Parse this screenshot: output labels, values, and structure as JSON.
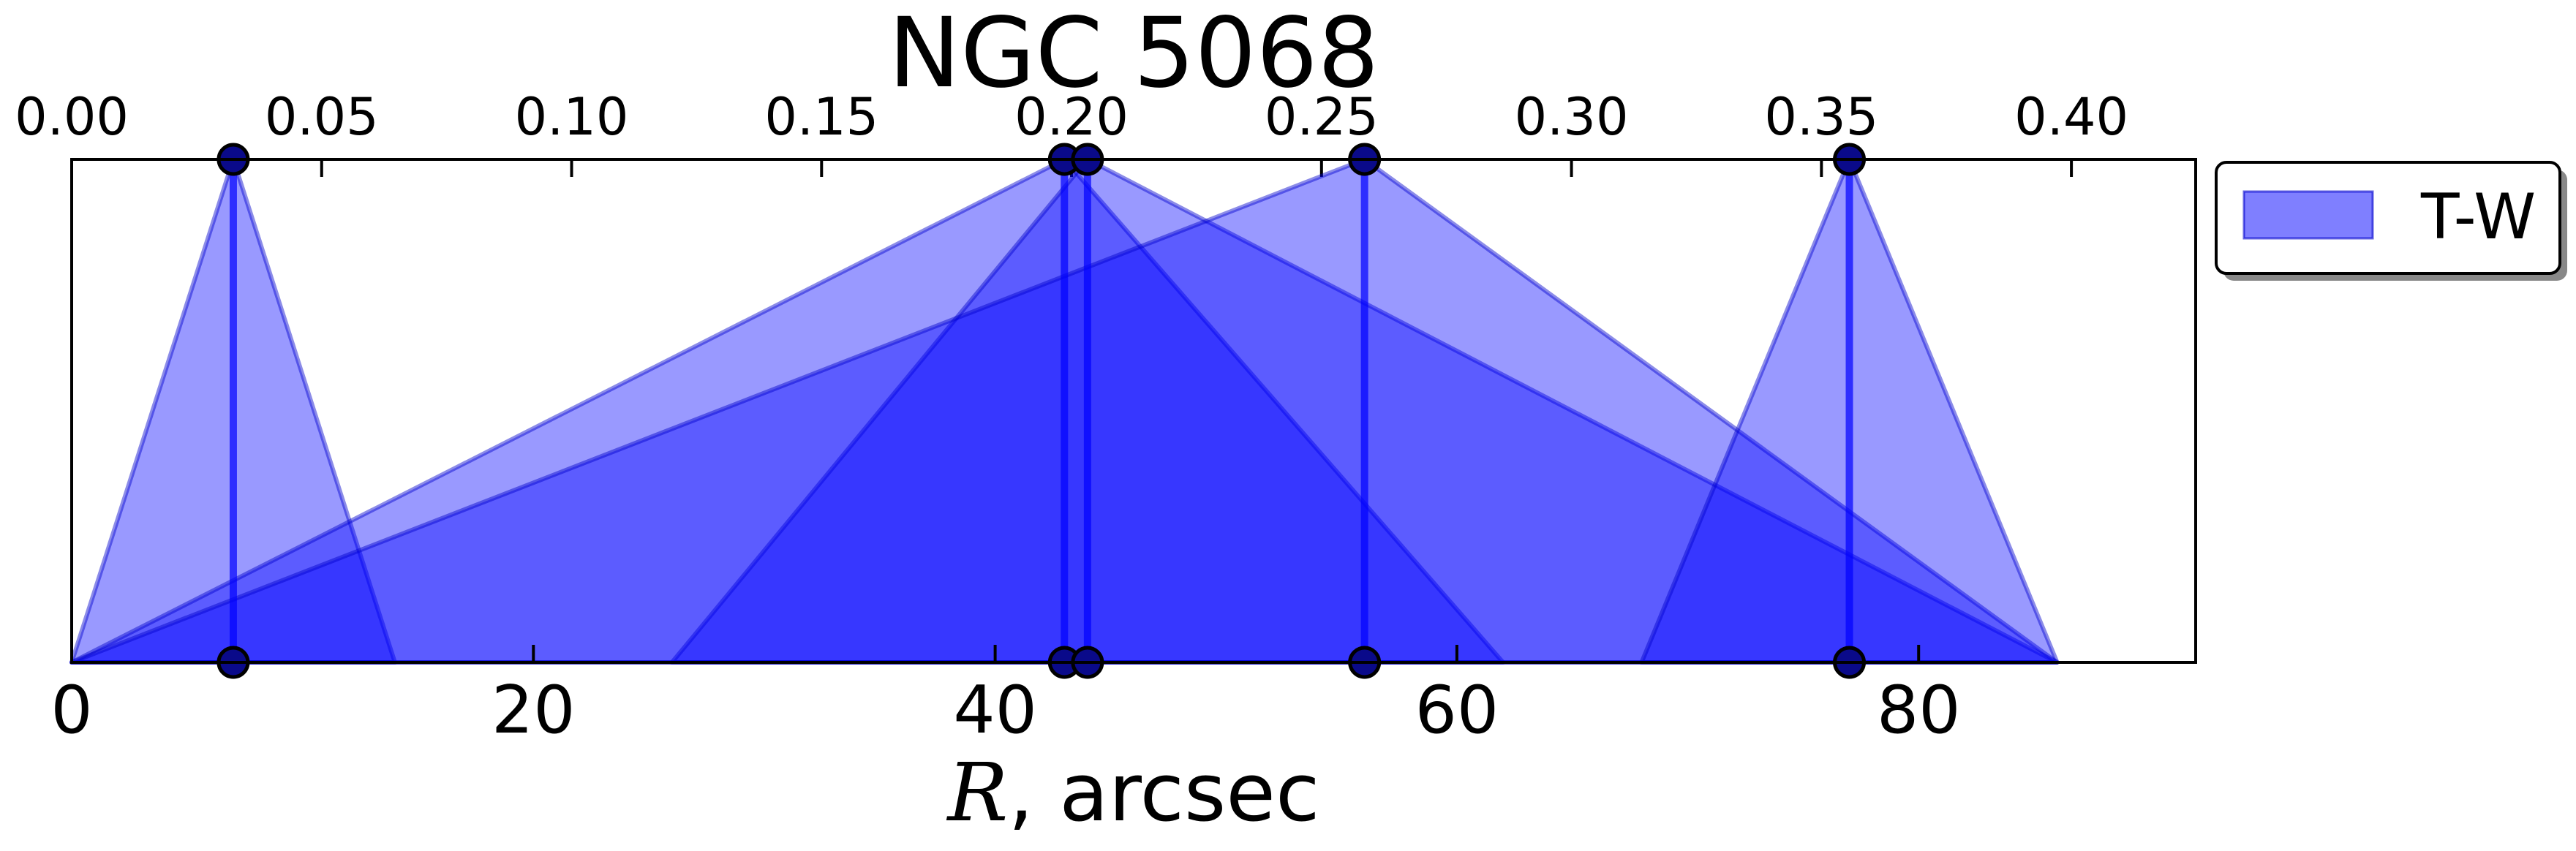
{
  "chart_data": {
    "type": "area",
    "title": "NGC 5068",
    "xlabel_symbol": "R",
    "xlabel_rest": ", arcsec",
    "xlim": [
      0,
      92
    ],
    "xticks": [
      0,
      20,
      40,
      60,
      80
    ],
    "xtick_labels": [
      "0",
      "20",
      "40",
      "60",
      "80"
    ],
    "top_axis": {
      "scale": 0.004618,
      "ticks": [
        0.0,
        0.05,
        0.1,
        0.15,
        0.2,
        0.25,
        0.3,
        0.35,
        0.4
      ],
      "tick_labels": [
        "0.00",
        "0.05",
        "0.10",
        "0.15",
        "0.20",
        "0.25",
        "0.30",
        "0.35",
        "0.40"
      ]
    },
    "ylim": [
      0,
      1
    ],
    "grid": false,
    "legend": {
      "position": "outside-right-top",
      "entries": [
        "T-W"
      ]
    },
    "series": [
      {
        "name": "T-W",
        "color": "#0000ff",
        "edge_color": "#0000cc",
        "marker_color": "#0a0a8a",
        "triangles": [
          {
            "left": 0,
            "peak": 7,
            "right": 14
          },
          {
            "left": 0,
            "peak": 43,
            "right": 62
          },
          {
            "left": 26,
            "peak": 44,
            "right": 86
          },
          {
            "left": 0,
            "peak": 56,
            "right": 86
          },
          {
            "left": 68,
            "peak": 77,
            "right": 86
          }
        ],
        "peaks": [
          7,
          43,
          44,
          56,
          77
        ]
      }
    ]
  }
}
